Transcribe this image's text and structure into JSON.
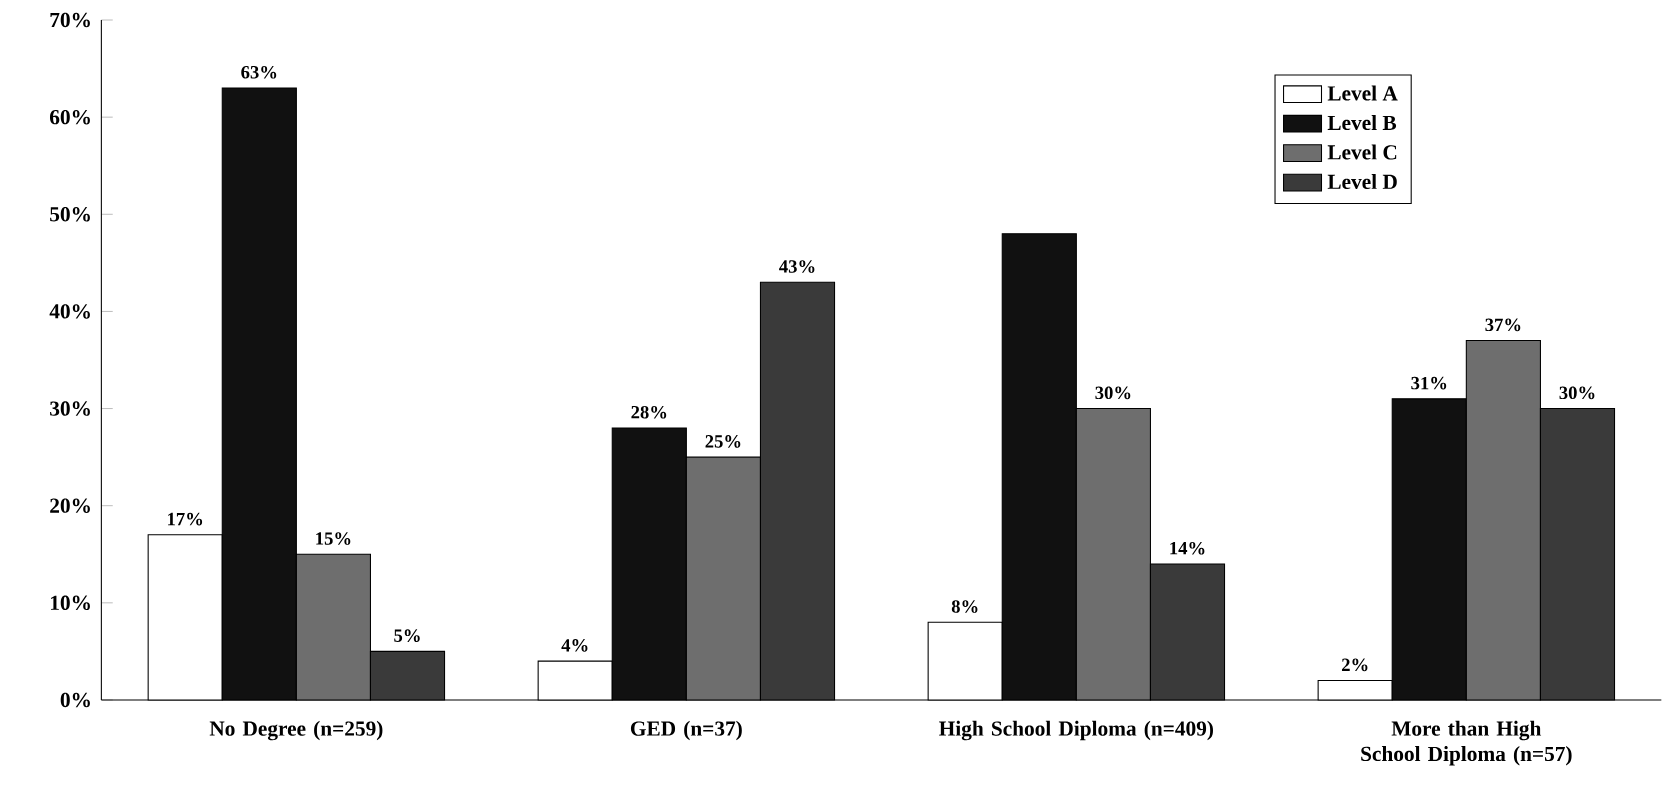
{
  "chart_data": {
    "type": "bar",
    "categories": [
      "No Degree (n=259)",
      "GED (n=37)",
      "High School Diploma (n=409)",
      "More than High School Diploma (n=57)"
    ],
    "series": [
      {
        "name": "Level A",
        "color": "#ffffff",
        "values": [
          17,
          4,
          8,
          2
        ],
        "value_labels": [
          "17%",
          "4%",
          "8%",
          "2%"
        ]
      },
      {
        "name": "Level B",
        "color": "#111111",
        "values": [
          63,
          28,
          48,
          31
        ],
        "value_labels": [
          "63%",
          "28%",
          null,
          "31%"
        ]
      },
      {
        "name": "Level C",
        "color": "#6e6e6e",
        "values": [
          15,
          25,
          30,
          37
        ],
        "value_labels": [
          "15%",
          "25%",
          "30%",
          "37%"
        ]
      },
      {
        "name": "Level D",
        "color": "#3a3a3a",
        "values": [
          5,
          43,
          14,
          30
        ],
        "value_labels": [
          "5%",
          "43%",
          "14%",
          "30%"
        ]
      }
    ],
    "ylim": [
      0,
      70
    ],
    "yticks": [
      {
        "value": 0,
        "label": "0%"
      },
      {
        "value": 10,
        "label": "10%"
      },
      {
        "value": 20,
        "label": "20%"
      },
      {
        "value": 30,
        "label": "30%"
      },
      {
        "value": 40,
        "label": "40%"
      },
      {
        "value": 50,
        "label": "50%"
      },
      {
        "value": 60,
        "label": "60%"
      },
      {
        "value": 70,
        "label": "70%"
      }
    ],
    "grid": false,
    "legend": "top right"
  }
}
